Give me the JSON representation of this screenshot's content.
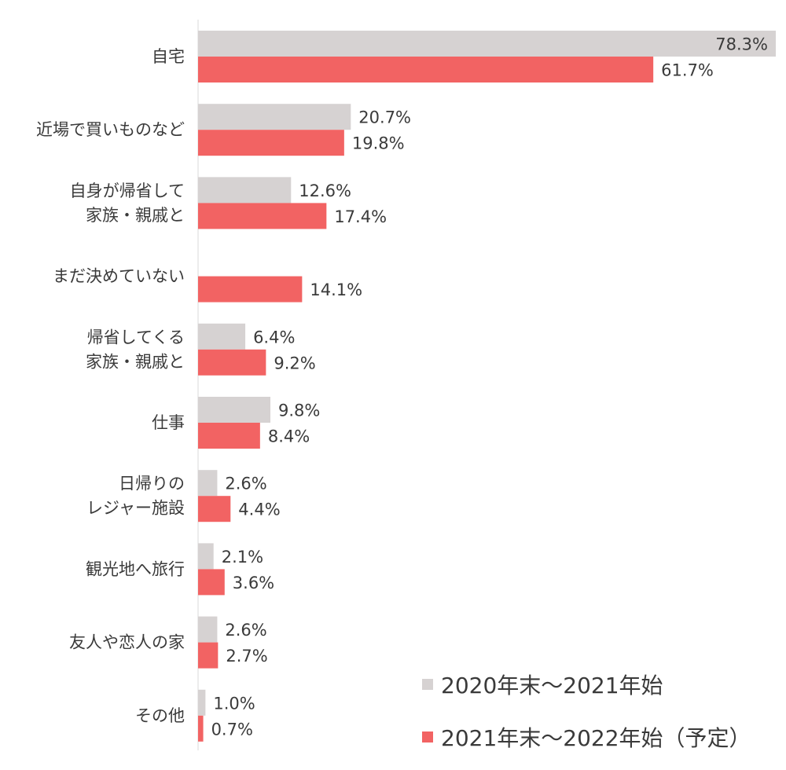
{
  "chart_data": {
    "type": "bar",
    "orientation": "horizontal",
    "categories": [
      "自宅",
      "近場で買いものなど",
      "自身が帰省して\n家族・親戚と",
      "まだ決めていない",
      "帰省してくる\n家族・親戚と",
      "仕事",
      "日帰りの\nレジャー施設",
      "観光地へ旅行",
      "友人や恋人の家",
      "その他"
    ],
    "series": [
      {
        "name": "2020年末～2021年始",
        "color": "#d6d2d2",
        "values": [
          78.3,
          20.7,
          12.6,
          null,
          6.4,
          9.8,
          2.6,
          2.1,
          2.6,
          1.0
        ],
        "labels": [
          "78.3%",
          "20.7%",
          "12.6%",
          "",
          "6.4%",
          "9.8%",
          "2.6%",
          "2.1%",
          "2.6%",
          "1.0%"
        ]
      },
      {
        "name": "2021年末～2022年始（予定）",
        "color": "#f26363",
        "values": [
          61.7,
          19.8,
          17.4,
          14.1,
          9.2,
          8.4,
          4.4,
          3.6,
          2.7,
          0.7
        ],
        "labels": [
          "61.7%",
          "19.8%",
          "17.4%",
          "14.1%",
          "9.2%",
          "8.4%",
          "4.4%",
          "3.6%",
          "2.7%",
          "0.7%"
        ]
      }
    ],
    "xlim": [
      0,
      78.3
    ],
    "grid": false,
    "legend_position": "bottom-right"
  }
}
